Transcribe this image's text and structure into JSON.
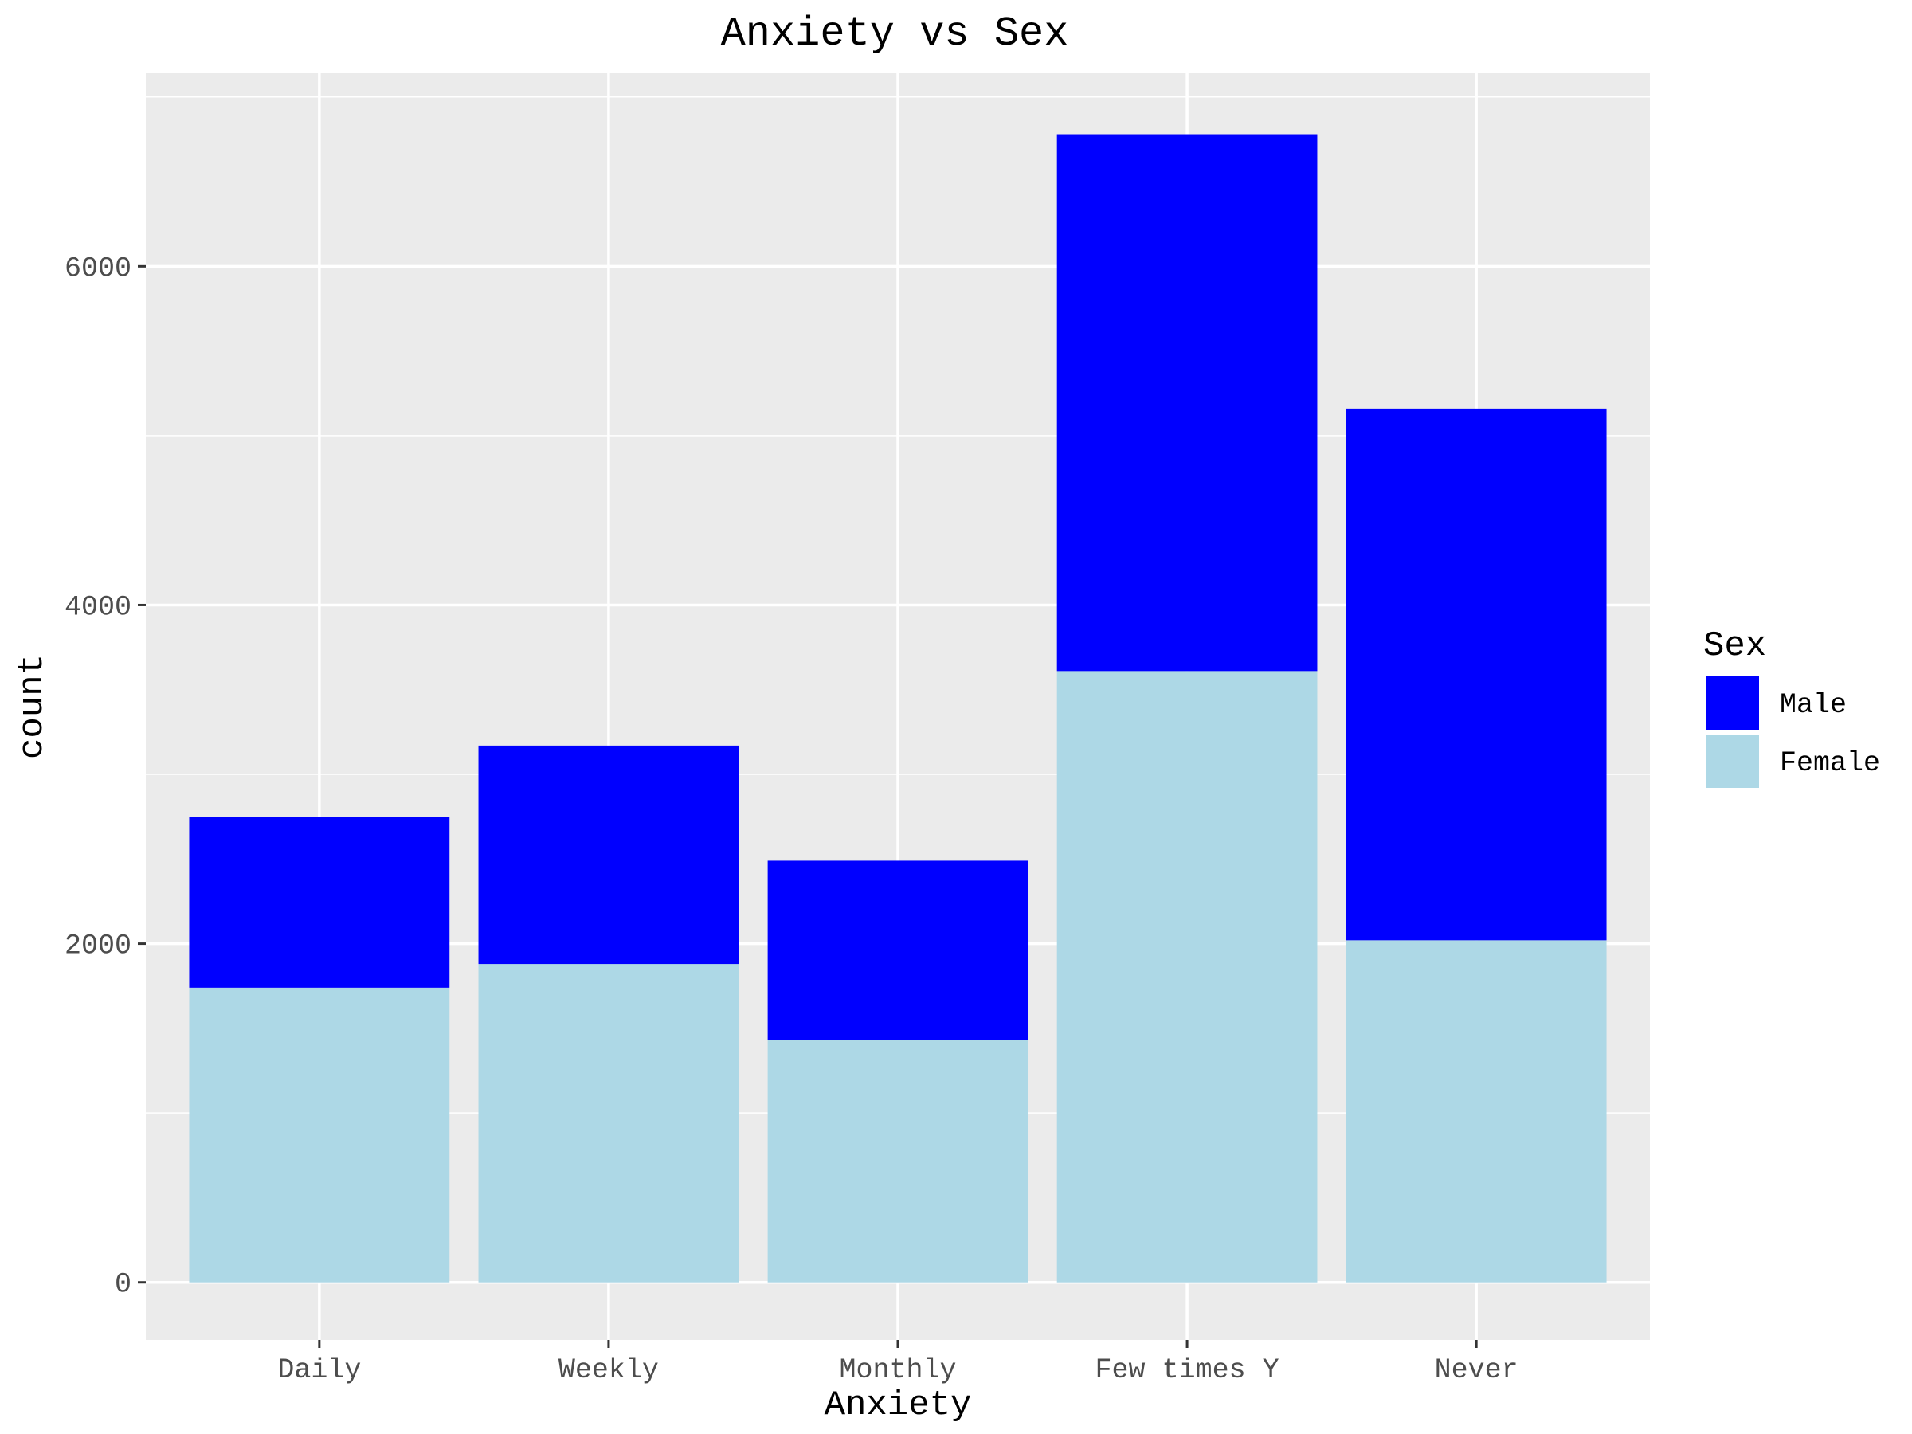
{
  "chart_data": {
    "type": "bar",
    "stacked": true,
    "title": "Anxiety vs Sex",
    "xlabel": "Anxiety",
    "ylabel": "count",
    "categories": [
      "Daily",
      "Weekly",
      "Monthly",
      "Few times Y",
      "Never"
    ],
    "series": [
      {
        "name": "Female",
        "color": "#add8e6",
        "values": [
          1740,
          1880,
          1430,
          3610,
          2020
        ]
      },
      {
        "name": "Male",
        "color": "#0000ff",
        "values": [
          1010,
          1290,
          1060,
          3170,
          3140
        ]
      }
    ],
    "ylim": [
      -340,
      7140
    ],
    "yticks": [
      0,
      2000,
      4000,
      6000
    ],
    "ytick_labels": [
      "0",
      "2000",
      "4000",
      "6000"
    ],
    "grid": true,
    "background": "#ebebeb",
    "legend": {
      "title": "Sex",
      "position": "right",
      "items": [
        {
          "label": "Male",
          "color": "#0000ff"
        },
        {
          "label": "Female",
          "color": "#add8e6"
        }
      ]
    }
  }
}
